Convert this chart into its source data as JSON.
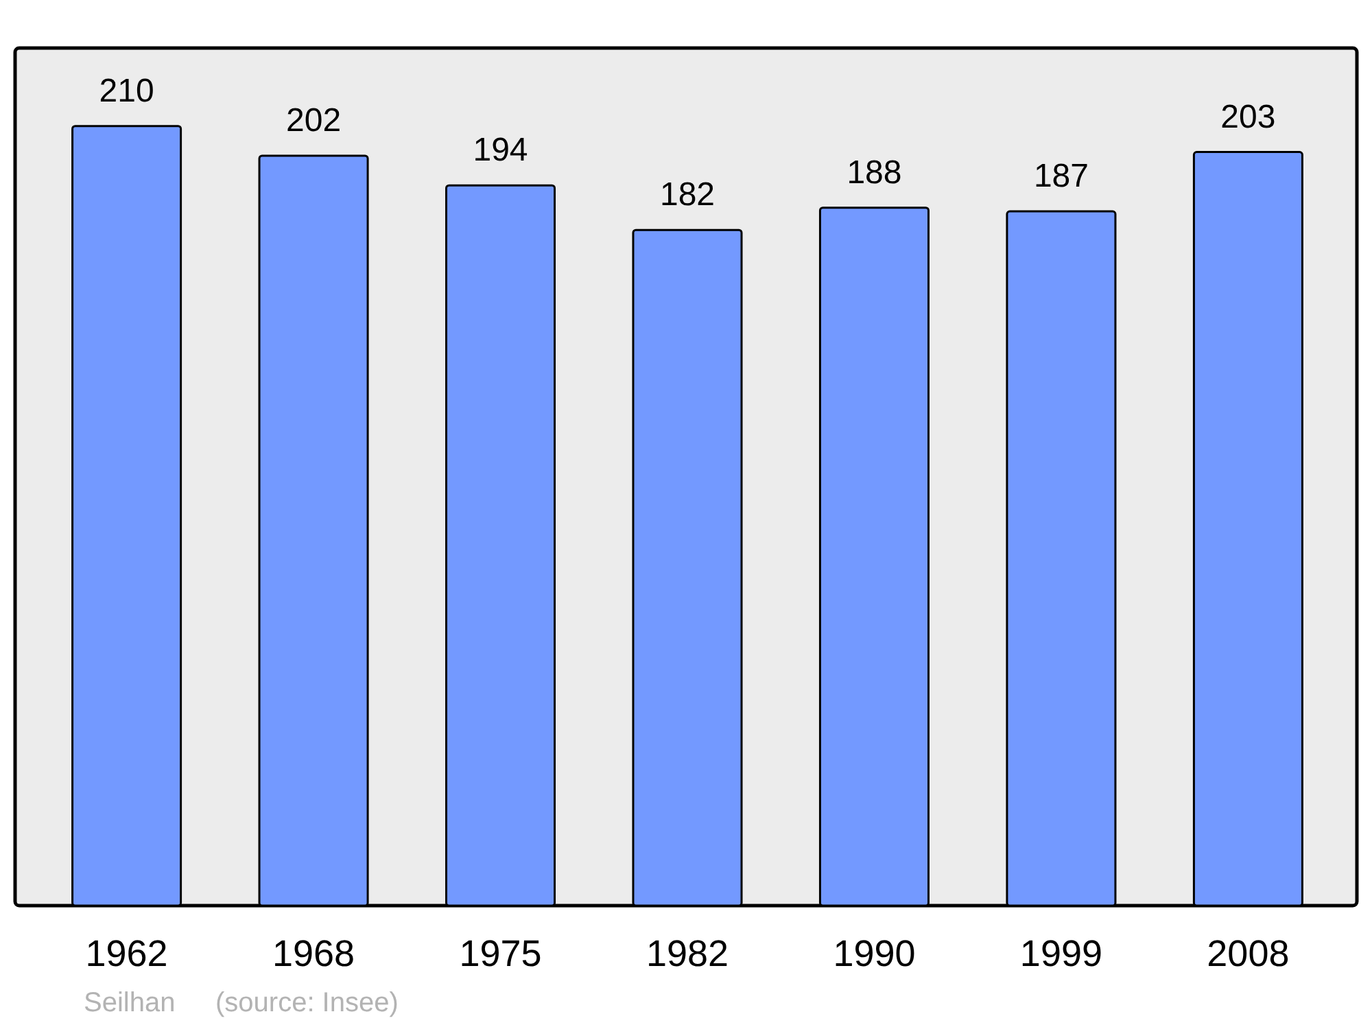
{
  "chart_data": {
    "type": "bar",
    "categories": [
      "1962",
      "1968",
      "1975",
      "1982",
      "1990",
      "1999",
      "2008"
    ],
    "values": [
      210,
      202,
      194,
      182,
      188,
      187,
      203
    ],
    "color": "#7399ff",
    "data_labels": true,
    "annotations": [
      "Seilhan",
      "(source: Insee)"
    ]
  }
}
